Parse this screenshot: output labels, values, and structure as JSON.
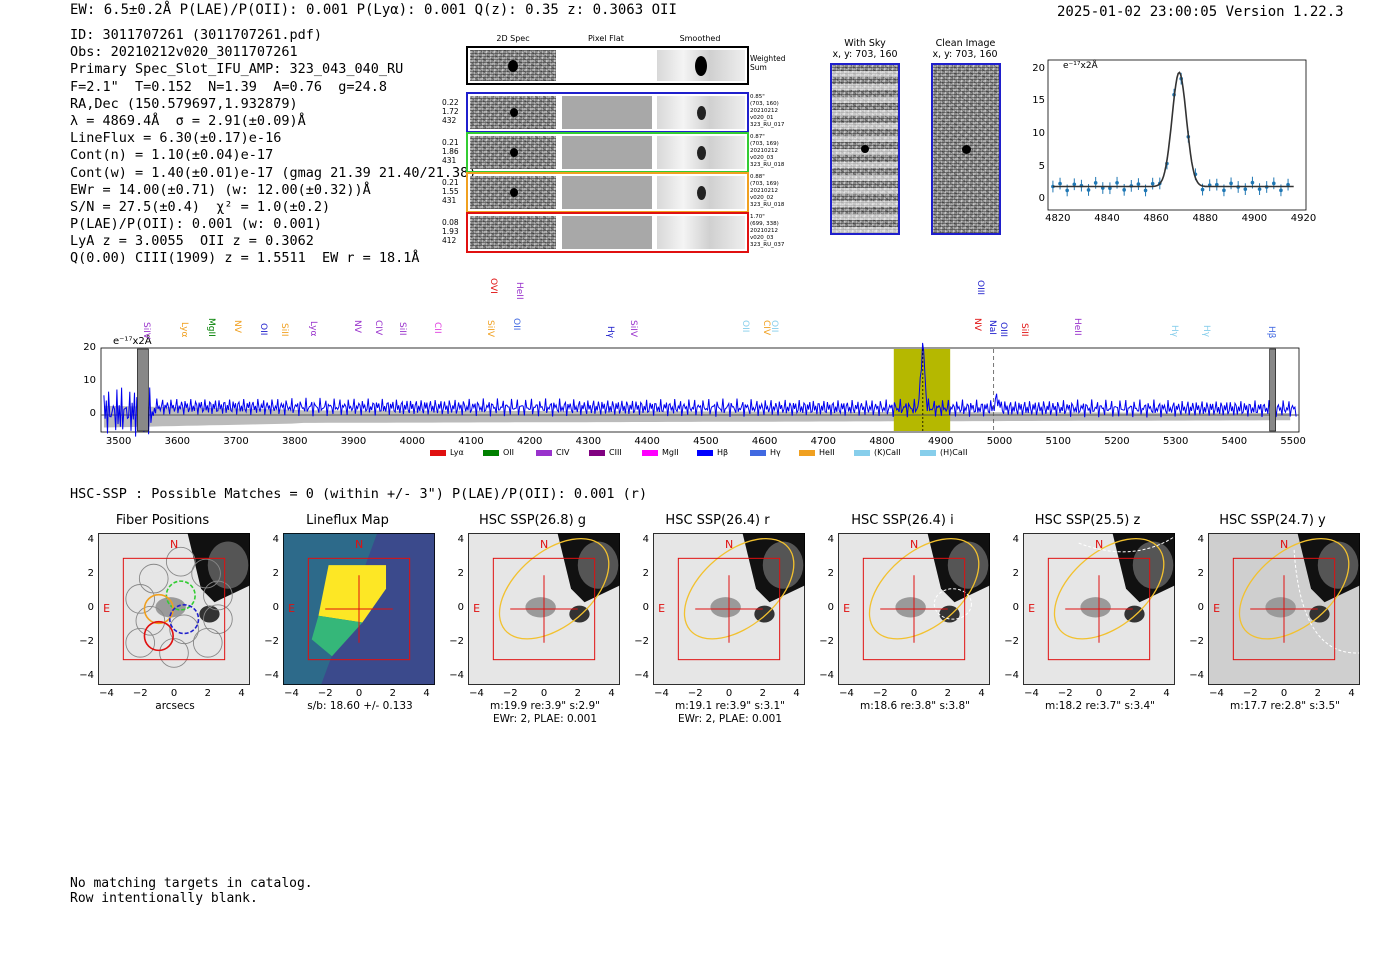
{
  "header": {
    "left": "EW: 6.5±0.2Å  P(LAE)/P(OII): 0.001  P(Lyα): 0.001  Q(z): 0.35  z: 0.3063  OII",
    "right": "2025-01-02 23:00:05  Version 1.22.3"
  },
  "info": {
    "lines": [
      "ID: 3011707261 (3011707261.pdf)",
      "Obs: 20210212v020_3011707261",
      "Primary Spec_Slot_IFU_AMP: 323_043_040_RU",
      "F=2.1\"  T=0.152  N=1.39  A=0.76  g=24.8",
      "RA,Dec (150.579697,1.932879)",
      "λ = 4869.4Å  σ = 2.91(±0.09)Å",
      "LineFlux = 6.30(±0.17)e-16",
      "Cont(n) = 1.10(±0.04)e-17",
      "Cont(w) = 1.40(±0.01)e-17 (gmag 21.39 21.40/21.38)",
      "EWr = 14.00(±0.71) (w: 12.00(±0.32))Å",
      "S/N = 27.5(±0.4)  χ² = 1.0(±0.2)",
      "P(LAE)/P(OII): 0.001 (w: 0.001)",
      "LyA z = 3.0055  OII z = 0.3062",
      "Q(0.00) CIII(1909) z = 1.5511  EW r = 18.1Å"
    ]
  },
  "cutouts": {
    "headers": [
      "2D Spec",
      "Pixel Flat",
      "Smoothed"
    ],
    "weighted_sum_label": "Weighted Sum",
    "rows": [
      {
        "left": [
          "0.22",
          "1.72",
          "432"
        ],
        "right": [
          "0.85\"",
          "(703, 160)",
          "20210212",
          "v020_01",
          "323_RU_017"
        ],
        "color": "#1f1fcc"
      },
      {
        "left": [
          "0.21",
          "1.86",
          "431"
        ],
        "right": [
          "0.87\"",
          "(703, 169)",
          "20210212",
          "v020_03",
          "323_RU_018"
        ],
        "color": "#33cc33"
      },
      {
        "left": [
          "0.21",
          "1.55",
          "431"
        ],
        "right": [
          "0.88\"",
          "(703, 169)",
          "20210212",
          "v020_02",
          "323_RU_018"
        ],
        "color": "#f0a020"
      },
      {
        "left": [
          "0.08",
          "1.93",
          "412"
        ],
        "right": [
          "1.70\"",
          "(699, 338)",
          "20210212",
          "v020_03",
          "323_RU_037"
        ],
        "color": "#e01010"
      }
    ]
  },
  "sky": {
    "with_sky_title": "With Sky",
    "with_sky_coords": "x, y: 703, 160",
    "clean_title": "Clean Image",
    "clean_coords": "x, y: 703, 160"
  },
  "zoom_plot": {
    "unit_label": "e⁻¹⁷x2Å",
    "x_ticks": [
      "4820",
      "4840",
      "4860",
      "4880",
      "4900",
      "4920"
    ],
    "y_ticks": [
      "20",
      "15",
      "10",
      "5",
      "0"
    ]
  },
  "spectrum": {
    "unit_label": "e⁻¹⁷x2Å",
    "x_ticks": [
      "3500",
      "3600",
      "3700",
      "3800",
      "3900",
      "4000",
      "4100",
      "4200",
      "4300",
      "4400",
      "4500",
      "4600",
      "4700",
      "4800",
      "4900",
      "5000",
      "5100",
      "5200",
      "5300",
      "5400",
      "5500"
    ],
    "y_ticks": [
      "20",
      "10",
      "0"
    ],
    "line_labels": [
      {
        "text": "SiIV",
        "color": "#9932cc"
      },
      {
        "text": "Lyα",
        "color": "#f0a020"
      },
      {
        "text": "MgII",
        "color": "#008000"
      },
      {
        "text": "NV",
        "color": "#f0a020"
      },
      {
        "text": "OII",
        "color": "#1f1fcc"
      },
      {
        "text": "SiII",
        "color": "#f0a020"
      },
      {
        "text": "Lyα",
        "color": "#9932cc"
      },
      {
        "text": "NV",
        "color": "#9932cc"
      },
      {
        "text": "CIV",
        "color": "#9932cc"
      },
      {
        "text": "SiII",
        "color": "#9932cc"
      },
      {
        "text": "CII",
        "color": "#e040e0"
      },
      {
        "text": "SiIV",
        "color": "#f0a020"
      },
      {
        "text": "OVI",
        "color": "#e01010"
      },
      {
        "text": "OII",
        "color": "#4169e1"
      },
      {
        "text": "HeII",
        "color": "#9932cc"
      },
      {
        "text": "Hγ",
        "color": "#1f1fcc"
      },
      {
        "text": "SiIV",
        "color": "#9932cc"
      },
      {
        "text": "OII",
        "color": "#87ceeb"
      },
      {
        "text": "CIV",
        "color": "#f0a020"
      },
      {
        "text": "OII",
        "color": "#87ceeb"
      },
      {
        "text": "OIII",
        "color": "#1f1fcc"
      },
      {
        "text": "NV",
        "color": "#e01010"
      },
      {
        "text": "NaI",
        "color": "#1f1fcc"
      },
      {
        "text": "OIII",
        "color": "#1f1fcc"
      },
      {
        "text": "SiII",
        "color": "#e01010"
      },
      {
        "text": "HeII",
        "color": "#9932cc"
      },
      {
        "text": "Hγ",
        "color": "#87ceeb"
      },
      {
        "text": "Hγ",
        "color": "#87ceeb"
      },
      {
        "text": "Hβ",
        "color": "#4169e1"
      }
    ],
    "legend": [
      {
        "label": "Lyα",
        "color": "#e01010"
      },
      {
        "label": "OII",
        "color": "#008000"
      },
      {
        "label": "CIV",
        "color": "#9932cc"
      },
      {
        "label": "CIII",
        "color": "#800080"
      },
      {
        "label": "MgII",
        "color": "#ff00ff"
      },
      {
        "label": "Hβ",
        "color": "#0000ff"
      },
      {
        "label": "Hγ",
        "color": "#4169e1"
      },
      {
        "label": "HeII",
        "color": "#f0a020"
      },
      {
        "label": "(K)CaII",
        "color": "#87ceeb"
      },
      {
        "label": "(H)CaII",
        "color": "#87ceeb"
      }
    ]
  },
  "hsc": {
    "title": "HSC-SSP : Possible Matches = 0 (within +/- 3\")  P(LAE)/P(OII): 0.001 (r)",
    "panels": [
      {
        "title": "Fiber Positions",
        "caption1": "arcsecs",
        "caption2": ""
      },
      {
        "title": "Lineflux Map",
        "caption1": "s/b: 18.60 +/- 0.133",
        "caption2": ""
      },
      {
        "title": "HSC SSP(26.8) g",
        "caption1": "m:19.9  re:3.9\"  s:2.9\"",
        "caption2": "EWr: 2, PLAE: 0.001"
      },
      {
        "title": "HSC SSP(26.4) r",
        "caption1": "m:19.1  re:3.9\"  s:3.1\"",
        "caption2": "EWr: 2, PLAE: 0.001"
      },
      {
        "title": "HSC SSP(26.4) i",
        "caption1": "m:18.6  re:3.8\"  s:3.8\"",
        "caption2": ""
      },
      {
        "title": "HSC SSP(25.5) z",
        "caption1": "m:18.2  re:3.7\"  s:3.4\"",
        "caption2": ""
      },
      {
        "title": "HSC SSP(24.7) y",
        "caption1": "m:17.7  re:2.8\"  s:3.5\"",
        "caption2": ""
      }
    ],
    "y_ticks": [
      "4",
      "2",
      "0",
      "−2",
      "−4"
    ],
    "x_ticks": [
      "−4",
      "−2",
      "0",
      "2",
      "4"
    ],
    "north": "N",
    "east": "E"
  },
  "footer": {
    "line1": "No matching targets in catalog.",
    "line2": "Row intentionally blank."
  }
}
